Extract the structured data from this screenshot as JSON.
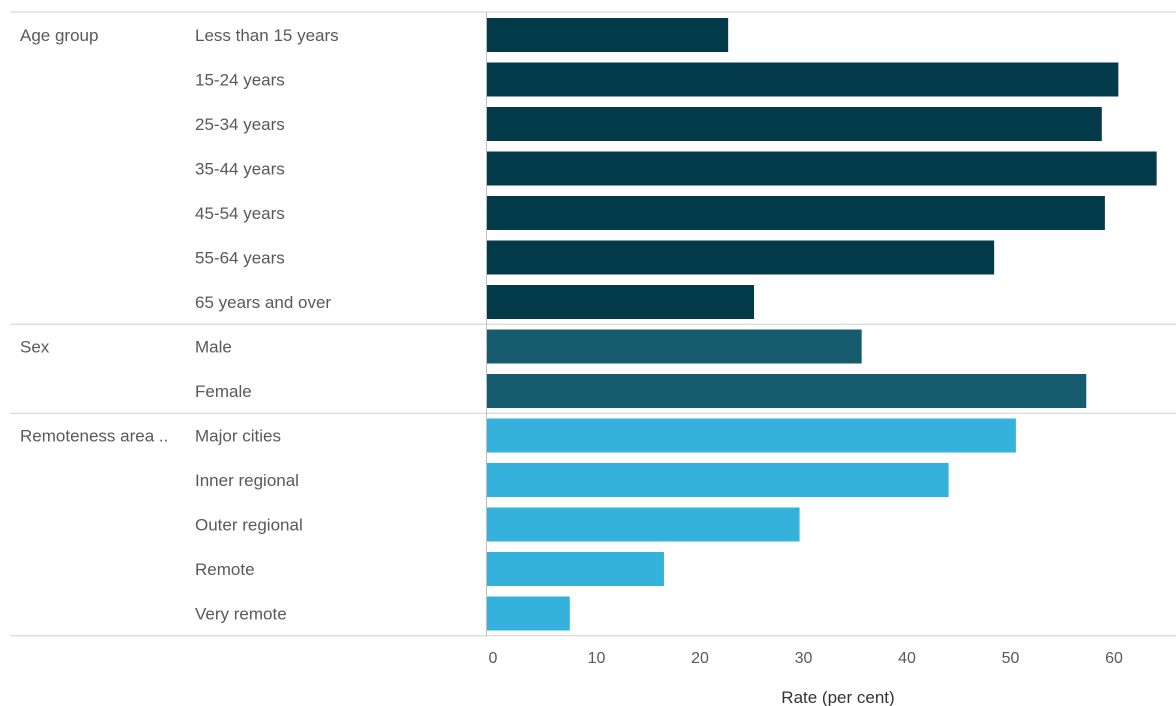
{
  "chart_data": {
    "type": "bar",
    "orientation": "horizontal",
    "xlabel": "Rate (per cent)",
    "ylabel": "",
    "xlim": [
      0,
      65
    ],
    "xticks": [
      0,
      10,
      20,
      30,
      40,
      50,
      60
    ],
    "grid": false,
    "legend": "none",
    "groups": [
      {
        "label": "Age group",
        "color": "#033a4a",
        "categories": [
          "Less than 15 years",
          "15-24 years",
          "25-34 years",
          "35-44 years",
          "45-54 years",
          "55-64 years",
          "65 years and over"
        ],
        "values": [
          23.3,
          61.0,
          59.4,
          64.7,
          59.7,
          49.0,
          25.8
        ]
      },
      {
        "label": "Sex",
        "color": "#175b6e",
        "categories": [
          "Male",
          "Female"
        ],
        "values": [
          36.2,
          57.9
        ]
      },
      {
        "label": "Remoteness area ..",
        "color": "#35b2dc",
        "categories": [
          "Major cities",
          "Inner regional",
          "Outer regional",
          "Remote",
          "Very remote"
        ],
        "values": [
          51.1,
          44.6,
          30.2,
          17.1,
          8.0
        ]
      }
    ]
  }
}
